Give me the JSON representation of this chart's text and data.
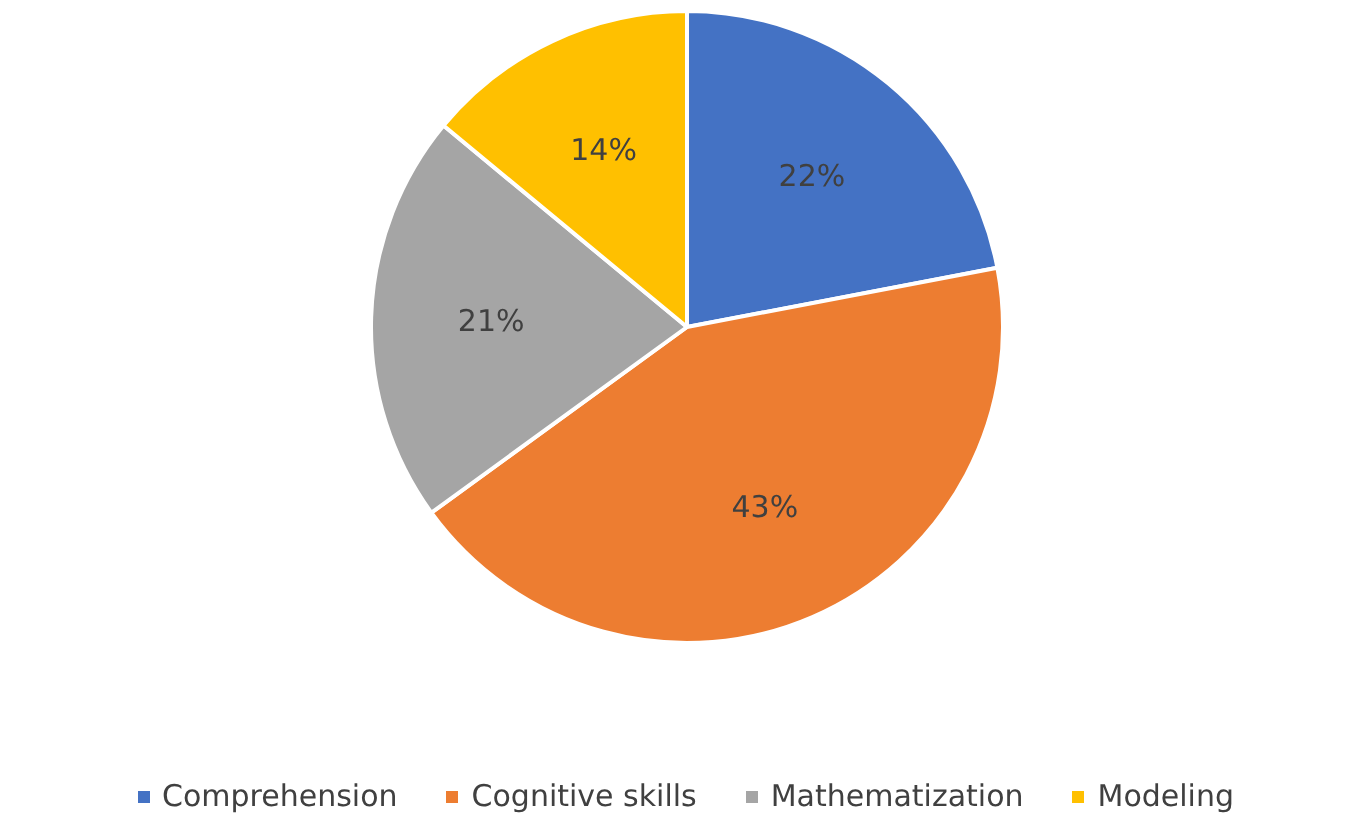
{
  "chart_data": {
    "type": "pie",
    "categories": [
      "Comprehension",
      "Cognitive skills",
      "Mathematization",
      "Modeling"
    ],
    "values": [
      22,
      43,
      21,
      14
    ],
    "colors": [
      "#4472c4",
      "#ed7d31",
      "#a5a5a5",
      "#ffc000"
    ],
    "value_labels": [
      "22%",
      "43%",
      "21%",
      "14%"
    ],
    "legend": "bottom"
  }
}
